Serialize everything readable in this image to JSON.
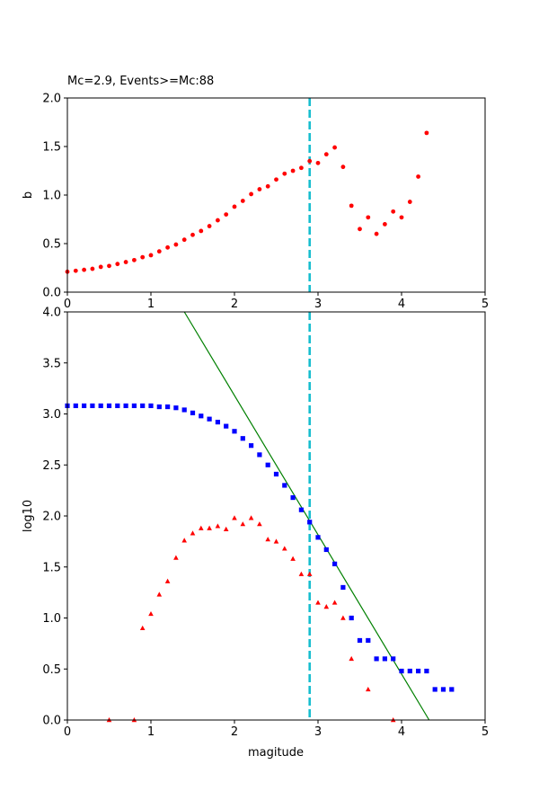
{
  "figure": {
    "background": "#ffffff"
  },
  "chart_data": [
    {
      "type": "scatter",
      "title": "Mc=2.9, Events>=Mc:88",
      "xlabel": "",
      "ylabel": "b",
      "xlim": [
        0,
        5
      ],
      "ylim": [
        0,
        2
      ],
      "xticks": [
        "0",
        "1",
        "2",
        "3",
        "4",
        "5"
      ],
      "yticks": [
        "0.0",
        "0.5",
        "1.0",
        "1.5",
        "2.0"
      ],
      "grid": false,
      "mc_line": {
        "x": 2.9,
        "color": "#17becf",
        "style": "dashed"
      },
      "series": [
        {
          "marker": "circle",
          "color": "#ff0000",
          "x": [
            0.0,
            0.1,
            0.2,
            0.3,
            0.4,
            0.5,
            0.6,
            0.7,
            0.8,
            0.9,
            1.0,
            1.1,
            1.2,
            1.3,
            1.4,
            1.5,
            1.6,
            1.7,
            1.8,
            1.9,
            2.0,
            2.1,
            2.2,
            2.3,
            2.4,
            2.5,
            2.6,
            2.7,
            2.8,
            2.9,
            3.0,
            3.1,
            3.2,
            3.3,
            3.4,
            3.5,
            3.6,
            3.7,
            3.8,
            3.9,
            4.0,
            4.1,
            4.2,
            4.3
          ],
          "y": [
            0.21,
            0.22,
            0.23,
            0.24,
            0.26,
            0.27,
            0.29,
            0.31,
            0.33,
            0.36,
            0.38,
            0.42,
            0.46,
            0.49,
            0.54,
            0.59,
            0.63,
            0.68,
            0.74,
            0.8,
            0.88,
            0.94,
            1.01,
            1.06,
            1.09,
            1.16,
            1.22,
            1.25,
            1.28,
            1.35,
            1.33,
            1.42,
            1.49,
            1.29,
            0.89,
            0.65,
            0.77,
            0.6,
            0.7,
            0.83,
            0.77,
            0.93,
            1.19,
            1.64
          ]
        }
      ]
    },
    {
      "type": "scatter",
      "title": "",
      "xlabel": "magitude",
      "ylabel": "log10",
      "xlim": [
        0,
        5
      ],
      "ylim": [
        0,
        4
      ],
      "xticks": [
        "0",
        "1",
        "2",
        "3",
        "4",
        "5"
      ],
      "yticks": [
        "0.0",
        "0.5",
        "1.0",
        "1.5",
        "2.0",
        "2.5",
        "3.0",
        "3.5",
        "4.0"
      ],
      "grid": false,
      "mc_line": {
        "x": 2.9,
        "color": "#17becf",
        "style": "dashed"
      },
      "fit_line": {
        "color": "#008000",
        "x": [
          1.4,
          4.33
        ],
        "y": [
          4.0,
          0.0
        ]
      },
      "series": [
        {
          "marker": "square",
          "color": "#0000ff",
          "x": [
            0.0,
            0.1,
            0.2,
            0.3,
            0.4,
            0.5,
            0.6,
            0.7,
            0.8,
            0.9,
            1.0,
            1.1,
            1.2,
            1.3,
            1.4,
            1.5,
            1.6,
            1.7,
            1.8,
            1.9,
            2.0,
            2.1,
            2.2,
            2.3,
            2.4,
            2.5,
            2.6,
            2.7,
            2.8,
            2.9,
            3.0,
            3.1,
            3.2,
            3.3,
            3.4,
            3.5,
            3.6,
            3.7,
            3.8,
            3.9,
            4.0,
            4.1,
            4.2,
            4.3,
            4.4,
            4.5,
            4.6
          ],
          "y": [
            3.08,
            3.08,
            3.08,
            3.08,
            3.08,
            3.08,
            3.08,
            3.08,
            3.08,
            3.08,
            3.08,
            3.07,
            3.07,
            3.06,
            3.04,
            3.01,
            2.98,
            2.95,
            2.92,
            2.88,
            2.83,
            2.76,
            2.69,
            2.6,
            2.5,
            2.41,
            2.3,
            2.18,
            2.06,
            1.94,
            1.79,
            1.67,
            1.53,
            1.3,
            1.0,
            0.78,
            0.78,
            0.6,
            0.6,
            0.6,
            0.48,
            0.48,
            0.48,
            0.48,
            0.3,
            0.3,
            0.3
          ]
        },
        {
          "marker": "triangle",
          "color": "#ff0000",
          "x": [
            0.5,
            0.8,
            0.9,
            1.0,
            1.1,
            1.2,
            1.3,
            1.4,
            1.5,
            1.6,
            1.7,
            1.8,
            1.9,
            2.0,
            2.1,
            2.2,
            2.3,
            2.4,
            2.5,
            2.6,
            2.7,
            2.8,
            2.9,
            3.0,
            3.1,
            3.2,
            3.3,
            3.4,
            3.6,
            3.9
          ],
          "y": [
            0.0,
            0.0,
            0.9,
            1.04,
            1.23,
            1.36,
            1.59,
            1.76,
            1.83,
            1.88,
            1.88,
            1.9,
            1.87,
            1.98,
            1.92,
            1.98,
            1.92,
            1.77,
            1.75,
            1.68,
            1.58,
            1.43,
            1.43,
            1.15,
            1.11,
            1.15,
            1.0,
            0.6,
            0.3,
            0.0
          ]
        }
      ]
    }
  ]
}
